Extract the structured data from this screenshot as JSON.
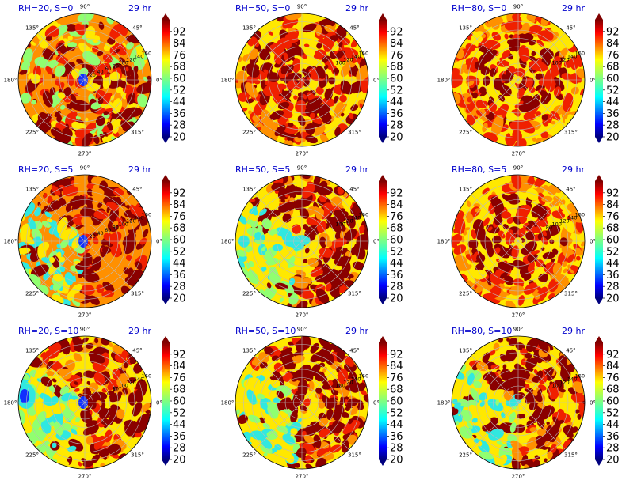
{
  "chart_data": [
    {
      "type": "heatmap",
      "title": "RH=20, S=0",
      "time_label": "29 hr",
      "pattern": "scattered",
      "dry_core": true,
      "colorbar_ticks": [
        "20",
        "28",
        "36",
        "44",
        "52",
        "60",
        "68",
        "76",
        "84",
        "92"
      ],
      "angle_labels": [
        "90°",
        "45°",
        "0°",
        "315°",
        "270°",
        "225°",
        "180°",
        "135°"
      ],
      "radial_labels": [
        "20",
        "40",
        "60",
        "80",
        "100",
        "120",
        "140",
        "160"
      ],
      "rlim": [
        0,
        160
      ],
      "clim": [
        20,
        100
      ]
    },
    {
      "type": "heatmap",
      "title": "RH=50, S=0",
      "time_label": "29 hr",
      "pattern": "ring",
      "dry_core": false,
      "colorbar_ticks": [
        "20",
        "28",
        "36",
        "44",
        "52",
        "60",
        "68",
        "76",
        "84",
        "92"
      ],
      "angle_labels": [
        "90°",
        "45°",
        "0°",
        "315°",
        "270°",
        "225°",
        "180°",
        "135°"
      ],
      "radial_labels": [
        "100",
        "120",
        "140",
        "160"
      ],
      "rlim": [
        0,
        160
      ],
      "clim": [
        20,
        100
      ]
    },
    {
      "type": "heatmap",
      "title": "RH=80, S=0",
      "time_label": "29 hr",
      "pattern": "spiral",
      "dry_core": false,
      "colorbar_ticks": [
        "20",
        "28",
        "36",
        "44",
        "52",
        "60",
        "68",
        "76",
        "84",
        "92"
      ],
      "angle_labels": [
        "90°",
        "45°",
        "0°",
        "315°",
        "270°",
        "225°",
        "180°",
        "135°"
      ],
      "radial_labels": [
        "100",
        "120",
        "140",
        "160"
      ],
      "rlim": [
        0,
        160
      ],
      "clim": [
        20,
        100
      ]
    },
    {
      "type": "heatmap",
      "title": "RH=20, S=5",
      "time_label": "29 hr",
      "pattern": "half",
      "dry_core": true,
      "colorbar_ticks": [
        "20",
        "28",
        "36",
        "44",
        "52",
        "60",
        "68",
        "76",
        "84",
        "92"
      ],
      "angle_labels": [
        "90°",
        "45°",
        "0°",
        "315°",
        "270°",
        "225°",
        "180°",
        "135°"
      ],
      "radial_labels": [
        "20",
        "40",
        "60",
        "80",
        "100",
        "120",
        "140",
        "160"
      ],
      "rlim": [
        0,
        160
      ],
      "clim": [
        20,
        100
      ]
    },
    {
      "type": "heatmap",
      "title": "RH=50, S=5",
      "time_label": "29 hr",
      "pattern": "half",
      "dry_core": false,
      "colorbar_ticks": [
        "20",
        "28",
        "36",
        "44",
        "52",
        "60",
        "68",
        "76",
        "84",
        "92"
      ],
      "angle_labels": [
        "90°",
        "45°",
        "0°",
        "315°",
        "270°",
        "225°",
        "180°",
        "135°"
      ],
      "radial_labels": [
        "100",
        "120",
        "140",
        "160"
      ],
      "rlim": [
        0,
        160
      ],
      "clim": [
        20,
        100
      ]
    },
    {
      "type": "heatmap",
      "title": "RH=80, S=5",
      "time_label": "29 hr",
      "pattern": "spiral",
      "dry_core": false,
      "colorbar_ticks": [
        "20",
        "28",
        "36",
        "44",
        "52",
        "60",
        "68",
        "76",
        "84",
        "92"
      ],
      "angle_labels": [
        "90°",
        "45°",
        "0°",
        "315°",
        "270°",
        "225°",
        "180°",
        "135°"
      ],
      "radial_labels": [
        "80",
        "100",
        "120",
        "140",
        "160"
      ],
      "rlim": [
        0,
        160
      ],
      "clim": [
        20,
        100
      ]
    },
    {
      "type": "heatmap",
      "title": "RH=20, S=10",
      "time_label": "29 hr",
      "pattern": "half",
      "dry_core": true,
      "colorbar_ticks": [
        "20",
        "28",
        "36",
        "44",
        "52",
        "60",
        "68",
        "76",
        "84",
        "92"
      ],
      "angle_labels": [
        "90°",
        "45°",
        "0°",
        "315°",
        "270°",
        "225°",
        "180°",
        "135°"
      ],
      "radial_labels": [
        "80",
        "100",
        "120",
        "140",
        "160"
      ],
      "rlim": [
        0,
        160
      ],
      "clim": [
        20,
        100
      ]
    },
    {
      "type": "heatmap",
      "title": "RH=50, S=10",
      "time_label": "29 hr",
      "pattern": "half",
      "dry_core": false,
      "colorbar_ticks": [
        "20",
        "28",
        "36",
        "44",
        "52",
        "60",
        "68",
        "76",
        "84",
        "92"
      ],
      "angle_labels": [
        "90°",
        "45°",
        "0°",
        "315°",
        "270°",
        "225°",
        "180°",
        "135°"
      ],
      "radial_labels": [
        "100",
        "120",
        "140",
        "160"
      ],
      "rlim": [
        0,
        160
      ],
      "clim": [
        20,
        100
      ]
    },
    {
      "type": "heatmap",
      "title": "RH=80, S=10",
      "time_label": "29 hr",
      "pattern": "half",
      "dry_core": false,
      "colorbar_ticks": [
        "20",
        "28",
        "36",
        "44",
        "52",
        "60",
        "68",
        "76",
        "84",
        "92"
      ],
      "angle_labels": [
        "90°",
        "45°",
        "0°",
        "315°",
        "270°",
        "225°",
        "180°",
        "135°"
      ],
      "radial_labels": [
        "100",
        "120",
        "140",
        "160"
      ],
      "rlim": [
        0,
        160
      ],
      "clim": [
        20,
        100
      ]
    }
  ]
}
